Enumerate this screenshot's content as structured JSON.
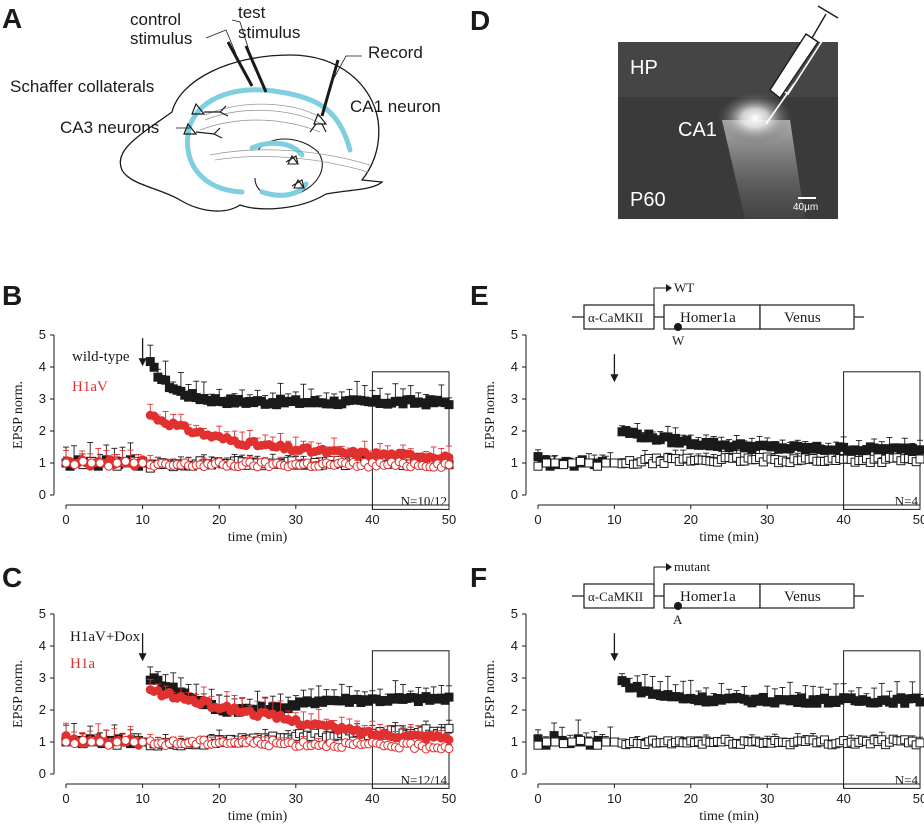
{
  "panel_letters": {
    "A": "A",
    "B": "B",
    "C": "C",
    "D": "D",
    "E": "E",
    "F": "F"
  },
  "schematic": {
    "control_stimulus": [
      "control",
      "stimulus"
    ],
    "test_stimulus": [
      "test",
      "stimulus"
    ],
    "record": "Record",
    "schaffer": "Schaffer collaterals",
    "ca1_neuron": "CA1 neuron",
    "ca3_neurons": "CA3 neurons"
  },
  "micrograph": {
    "hp": "HP",
    "ca1": "CA1",
    "age": "P60",
    "scale": "40µm"
  },
  "construct_labels": {
    "promoter": "α-CaMKII",
    "gene": "Homer1a",
    "tag": "Venus"
  },
  "colors": {
    "black": "#1a1a1a",
    "red": "#e03030",
    "cyan": "#7fcfe0",
    "redlight": "#f08080"
  },
  "chart_data": [
    {
      "id": "B",
      "type": "scatter",
      "xlabel": "time (min)",
      "ylabel": "EPSP norm.",
      "xlim": [
        0,
        50
      ],
      "ylim": [
        0,
        5
      ],
      "xticks": [
        "0",
        "10",
        "20",
        "30",
        "40",
        "50"
      ],
      "yticks": [
        "0",
        "1",
        "2",
        "3",
        "4",
        "5"
      ],
      "stimulus_time": 10,
      "analysis_window": [
        40,
        50
      ],
      "n_label": "N=10/12",
      "legend": [
        {
          "label": "wild-type",
          "color": "#1a1a1a"
        },
        {
          "label": "H1aV",
          "color": "#e03030"
        }
      ],
      "series": [
        {
          "name": "wild-type test",
          "color": "#1a1a1a",
          "marker": "square-filled",
          "baseline": [
            1.0,
            0.9,
            1.0,
            1.1,
            1.0,
            0.95,
            1.05,
            1.0,
            0.9,
            1.0,
            1.1,
            1.0,
            1.0,
            0.95,
            1.05,
            1.0,
            1.1,
            1.0,
            0.9,
            1.05
          ],
          "peak": 4.1,
          "plateau": 2.9,
          "decay": 3.0,
          "err": 0.5
        },
        {
          "name": "wild-type control",
          "color": "#1a1a1a",
          "marker": "square-open",
          "baseline": [
            1.0,
            1.0,
            0.95,
            1.05,
            1.0,
            1.0,
            0.9,
            1.0,
            1.05,
            1.0
          ],
          "peak": 0.9,
          "plateau": 1.0,
          "decay": 3.0,
          "err": 0.25
        },
        {
          "name": "H1aV test",
          "color": "#e03030",
          "marker": "circle-filled",
          "baseline": [
            1.0,
            1.05,
            0.95,
            1.0,
            1.1,
            1.0,
            0.9,
            1.0,
            1.05,
            1.0,
            1.0,
            1.1,
            0.95,
            1.0,
            1.05,
            1.0,
            1.0,
            0.9,
            1.0,
            1.1
          ],
          "peak": 2.5,
          "plateau": 1.15,
          "decay": 12.0,
          "err": 0.35
        },
        {
          "name": "H1aV control",
          "color": "#e03030",
          "marker": "circle-open",
          "baseline": [
            1.0,
            0.95,
            1.05,
            1.0,
            1.0,
            0.9,
            1.0,
            1.05,
            1.0,
            1.0
          ],
          "peak": 0.9,
          "plateau": 0.95,
          "decay": 3.0,
          "err": 0.25
        }
      ]
    },
    {
      "id": "C",
      "type": "scatter",
      "xlabel": "time (min)",
      "ylabel": "EPSP norm.",
      "xlim": [
        0,
        50
      ],
      "ylim": [
        0,
        5
      ],
      "xticks": [
        "0",
        "10",
        "20",
        "30",
        "40",
        "50"
      ],
      "yticks": [
        "0",
        "1",
        "2",
        "3",
        "4",
        "5"
      ],
      "stimulus_time": 10,
      "analysis_window": [
        40,
        50
      ],
      "n_label": "N=12/14",
      "legend": [
        {
          "label": "H1aV+Dox",
          "color": "#1a1a1a"
        },
        {
          "label": "H1a",
          "color": "#e03030"
        }
      ],
      "series": [
        {
          "name": "H1aV+Dox test",
          "color": "#1a1a1a",
          "marker": "square-filled",
          "baseline": [
            1.1,
            1.0,
            1.0,
            1.05,
            0.95,
            1.0,
            1.1,
            1.0,
            1.0,
            0.95,
            1.0,
            1.05,
            1.0,
            1.1,
            1.0,
            1.0,
            0.95,
            1.0,
            1.05,
            1.0
          ],
          "peak": 3.0,
          "plateau": 2.35,
          "decay": 3.0,
          "err": 0.5,
          "dip": [
            [
              20,
              2.0
            ],
            [
              28,
              2.05
            ],
            [
              33,
              2.3
            ],
            [
              50,
              2.35
            ]
          ]
        },
        {
          "name": "H1aV+Dox control",
          "color": "#1a1a1a",
          "marker": "square-open",
          "baseline": [
            1.0,
            1.0,
            0.95,
            1.05,
            1.0,
            1.0,
            0.9,
            1.0,
            1.05,
            1.0
          ],
          "peak": 0.9,
          "plateau": 1.3,
          "decay": 3.0,
          "err": 0.25,
          "dip": [
            [
              20,
              1.0
            ],
            [
              35,
              1.25
            ],
            [
              50,
              1.35
            ]
          ]
        },
        {
          "name": "H1a test",
          "color": "#e03030",
          "marker": "circle-filled",
          "baseline": [
            1.2,
            1.0,
            1.1,
            1.0,
            0.95,
            1.0,
            1.05,
            1.0,
            1.1,
            1.0,
            1.0,
            0.95,
            1.0,
            1.05,
            1.0,
            1.0,
            1.1,
            1.0,
            0.9,
            1.0
          ],
          "peak": 2.6,
          "plateau": 1.1,
          "decay": 3.0,
          "err": 0.4,
          "dip": [
            [
              20,
              2.1
            ],
            [
              27,
              1.8
            ],
            [
              31,
              1.6
            ],
            [
              40,
              1.25
            ],
            [
              50,
              1.15
            ]
          ]
        },
        {
          "name": "H1a control",
          "color": "#e03030",
          "marker": "circle-open",
          "baseline": [
            1.0,
            0.95,
            1.05,
            1.0,
            1.0,
            0.9,
            1.0,
            1.05,
            1.0,
            1.0
          ],
          "peak": 0.95,
          "plateau": 0.85,
          "decay": 3.0,
          "err": 0.2,
          "dip": [
            [
              20,
              1.0
            ],
            [
              50,
              0.85
            ]
          ]
        }
      ]
    },
    {
      "id": "E",
      "type": "scatter",
      "xlabel": "time (min)",
      "ylabel": "EPSP norm.",
      "xlim": [
        0,
        50
      ],
      "ylim": [
        0,
        5
      ],
      "xticks": [
        "0",
        "10",
        "20",
        "30",
        "40",
        "50"
      ],
      "yticks": [
        "0",
        "1",
        "2",
        "3",
        "4",
        "5"
      ],
      "stimulus_time": 10,
      "analysis_window": [
        40,
        50
      ],
      "n_label": "N=4",
      "construct": {
        "site_label": "WT",
        "mutation_label": "W"
      },
      "series": [
        {
          "name": "WT test",
          "color": "#1a1a1a",
          "marker": "square-filled",
          "baseline": [
            1.2,
            1.0,
            1.1,
            0.9,
            1.0,
            0.95,
            1.0,
            1.05,
            1.0,
            0.9,
            1.0,
            1.1,
            1.0,
            1.0,
            0.95,
            1.0,
            1.05,
            1.0,
            1.0,
            1.0
          ],
          "peak": 2.0,
          "plateau": 1.4,
          "decay": 10.0,
          "err": 0.3
        },
        {
          "name": "WT control",
          "color": "#1a1a1a",
          "marker": "square-open",
          "baseline": [
            0.9,
            1.0,
            1.0,
            0.95,
            1.0,
            1.05,
            1.0,
            0.9,
            1.0,
            1.0
          ],
          "peak": 0.95,
          "plateau": 1.1,
          "decay": 3.0,
          "err": 0.25
        }
      ]
    },
    {
      "id": "F",
      "type": "scatter",
      "xlabel": "time (min)",
      "ylabel": "EPSP norm.",
      "xlim": [
        0,
        50
      ],
      "ylim": [
        0,
        5
      ],
      "xticks": [
        "0",
        "10",
        "20",
        "30",
        "40",
        "50"
      ],
      "yticks": [
        "0",
        "1",
        "2",
        "3",
        "4",
        "5"
      ],
      "stimulus_time": 10,
      "analysis_window": [
        40,
        50
      ],
      "n_label": "N=4",
      "construct": {
        "site_label": "mutant",
        "mutation_label": "A"
      },
      "series": [
        {
          "name": "mutant test",
          "color": "#1a1a1a",
          "marker": "square-filled",
          "baseline": [
            1.1,
            1.0,
            0.9,
            1.0,
            1.2,
            1.0,
            1.05,
            1.0,
            0.95,
            1.0,
            1.1,
            1.0,
            1.0,
            0.9,
            1.0,
            1.05,
            1.0,
            1.0,
            1.0,
            1.0
          ],
          "peak": 2.9,
          "plateau": 2.3,
          "decay": 4.0,
          "err": 0.5
        },
        {
          "name": "mutant control",
          "color": "#1a1a1a",
          "marker": "square-open",
          "baseline": [
            0.9,
            1.0,
            1.0,
            0.95,
            1.0,
            1.05,
            1.0,
            0.9,
            1.0,
            1.0
          ],
          "peak": 0.9,
          "plateau": 1.0,
          "decay": 3.0,
          "err": 0.2
        }
      ]
    }
  ]
}
